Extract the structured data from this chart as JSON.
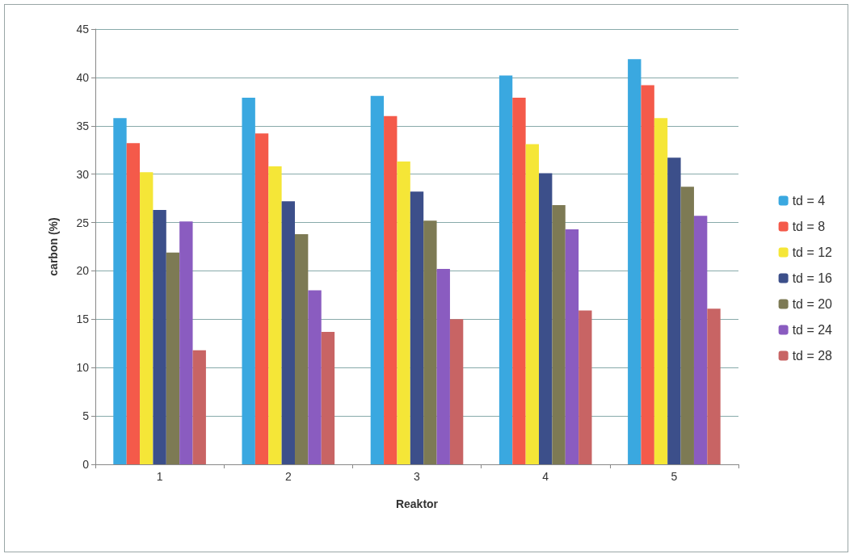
{
  "chart_data": {
    "type": "bar",
    "xlabel": "Reaktor",
    "ylabel": "carbon (%)",
    "categories": [
      "1",
      "2",
      "3",
      "4",
      "5"
    ],
    "series": [
      {
        "name": "td = 4",
        "color": "#3aa8e0",
        "values": [
          35.8,
          37.9,
          38.1,
          40.2,
          41.9
        ]
      },
      {
        "name": "td = 8",
        "color": "#f45a4a",
        "values": [
          33.2,
          34.2,
          36.0,
          37.9,
          39.2
        ]
      },
      {
        "name": "td = 12",
        "color": "#f5e637",
        "values": [
          30.2,
          30.8,
          31.3,
          33.1,
          35.8
        ]
      },
      {
        "name": "td = 16",
        "color": "#3c4f8a",
        "values": [
          26.3,
          27.2,
          28.2,
          30.1,
          31.7
        ]
      },
      {
        "name": "td = 20",
        "color": "#7d7a54",
        "values": [
          21.9,
          23.8,
          25.2,
          26.8,
          28.7
        ]
      },
      {
        "name": "td = 24",
        "color": "#8a5cc0",
        "values": [
          25.1,
          18.0,
          20.2,
          24.3,
          25.7
        ]
      },
      {
        "name": "td = 28",
        "color": "#c86464",
        "values": [
          11.8,
          13.7,
          15.0,
          15.9,
          16.1
        ]
      }
    ],
    "ylim": [
      0,
      45
    ],
    "yticks": [
      0,
      5,
      10,
      15,
      20,
      25,
      30,
      35,
      40,
      45
    ],
    "grid": "y",
    "legend": "right"
  }
}
